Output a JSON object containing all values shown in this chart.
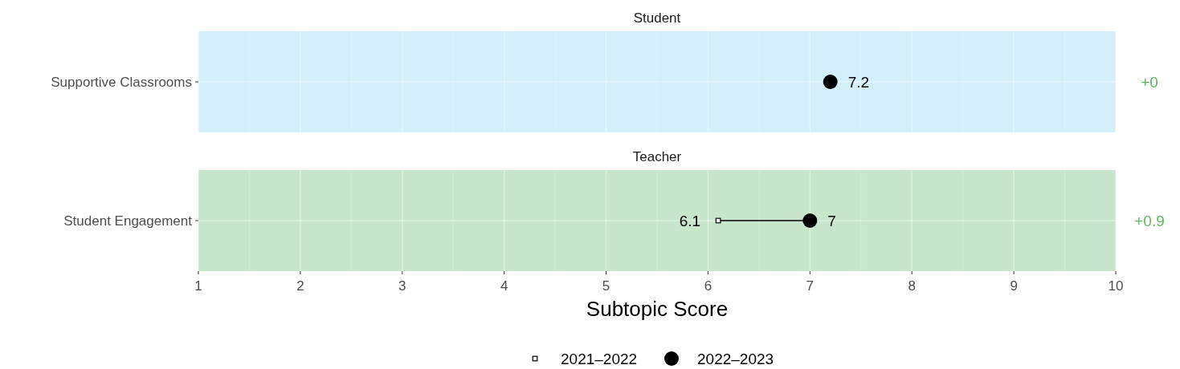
{
  "chart_data": [
    {
      "type": "scatter",
      "orientation": "horizontal",
      "title": "Student",
      "categories": [
        "Supportive Classrooms"
      ],
      "series": [
        {
          "color": "#000000",
          "marker": "circle",
          "values": [
            7.2
          ]
        }
      ],
      "xlim": [
        1,
        10
      ],
      "xticks": [
        1,
        2,
        3,
        4,
        5,
        6,
        7,
        8,
        9,
        10
      ],
      "grid": true,
      "tick_labels": "y",
      "data_labels": true,
      "bands": [
        {
          "axis": "x",
          "from": 1,
          "to": 10,
          "color": "#d4effa"
        }
      ],
      "annotations": [
        "+0"
      ]
    },
    {
      "type": "scatter",
      "orientation": "horizontal",
      "title": "Teacher",
      "categories": [
        "Student Engagement"
      ],
      "xlabel": "Subtopic Score",
      "series": [
        {
          "name": "2021–2022",
          "color": "#000000",
          "marker": "square",
          "values": [
            6.1
          ]
        },
        {
          "name": "2022–2023",
          "color": "#000000",
          "marker": "circle",
          "values": [
            7
          ]
        }
      ],
      "xlim": [
        1,
        10
      ],
      "xticks": [
        1,
        2,
        3,
        4,
        5,
        6,
        7,
        8,
        9,
        10
      ],
      "grid": true,
      "data_labels": true,
      "legend": "bottom",
      "bands": [
        {
          "axis": "x",
          "from": 1,
          "to": 10,
          "color": "#c7e6cc"
        }
      ],
      "annotations": [
        "+0.9"
      ]
    }
  ]
}
